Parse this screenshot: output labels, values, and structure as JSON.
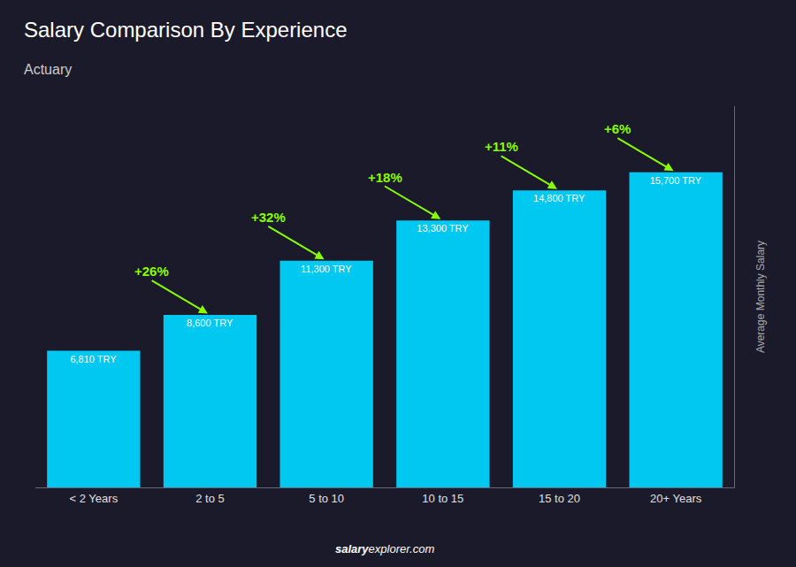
{
  "chart_data": {
    "type": "bar",
    "title": "Salary Comparison By Experience",
    "subtitle": "Actuary",
    "categories": [
      "< 2 Years",
      "2 to 5",
      "5 to 10",
      "10 to 15",
      "15 to 20",
      "20+ Years"
    ],
    "values": [
      6810,
      8600,
      11300,
      13300,
      14800,
      15700
    ],
    "value_labels": [
      "6,810 TRY",
      "8,600 TRY",
      "11,300 TRY",
      "13,300 TRY",
      "14,800 TRY",
      "15,700 TRY"
    ],
    "data_labels": true,
    "color": "#00c8f0",
    "ylabel": "Average Monthly Salary",
    "ylim": [
      0,
      19000
    ],
    "yticks": [],
    "tick_labels": "x",
    "grid": false,
    "annotations": [
      {
        "text": "+26%",
        "color": "#88ff00"
      },
      {
        "text": "+32%",
        "color": "#88ff00"
      },
      {
        "text": "+18%",
        "color": "#88ff00"
      },
      {
        "text": "+11%",
        "color": "#88ff00"
      },
      {
        "text": "+6%",
        "color": "#88ff00"
      }
    ],
    "footer": [
      "salary",
      "explorer.com"
    ]
  }
}
